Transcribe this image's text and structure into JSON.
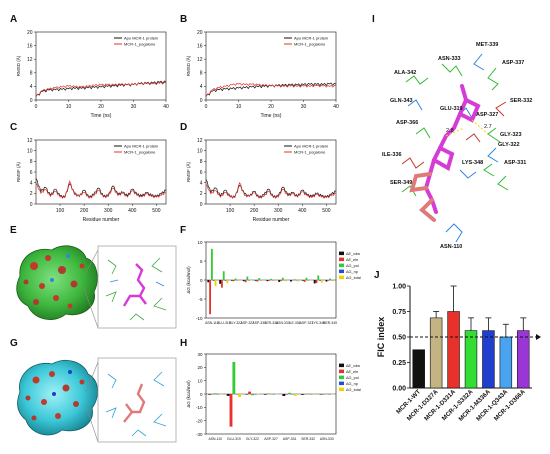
{
  "figure": {
    "panel_letters": [
      "A",
      "B",
      "C",
      "D",
      "E",
      "F",
      "G",
      "H",
      "I",
      "J"
    ]
  },
  "panels": {
    "A": {
      "ylabel": "RMSD (Å)",
      "xlabel": "Time (ns)",
      "legend": [
        "Apo MCR-1 protein",
        "MCR-1_pogalone"
      ]
    },
    "B": {
      "ylabel": "RMSD (Å)",
      "xlabel": "Time (ns)",
      "legend": [
        "Apo MCR-1 protein",
        "MCR-1_pogalone"
      ]
    },
    "C": {
      "ylabel": "RMSF (Å)",
      "xlabel": "Residue number",
      "legend": [
        "Apo MCR-1 protein",
        "MCR-1_pogalone"
      ]
    },
    "D": {
      "ylabel": "RMSF (Å)",
      "xlabel": "Residue number",
      "legend": [
        "Apo MCR-1 protein",
        "MCR-1_pogalone"
      ]
    },
    "F": {
      "ylabel": "ΔG (kcal/mol)",
      "legend": [
        "ΔE_vdw",
        "ΔE_ele",
        "ΔG_pol",
        "ΔG_np",
        "ΔG_total"
      ]
    },
    "H": {
      "ylabel": "ΔG (kcal/mol)",
      "legend": [
        "ΔE_vdw",
        "ΔE_ele",
        "ΔG_pol",
        "ΔG_np",
        "ΔG_total"
      ]
    },
    "I": {
      "residues": [
        "ALA-342",
        "ASN-333",
        "MET-339",
        "ASP-337",
        "SER-332",
        "GLN-343",
        "GLU-319",
        "ASP-327",
        "ASP-366",
        "GLY-323",
        "GLY-322",
        "ILE-336",
        "LYS-348",
        "ASP-331",
        "SER-349",
        "ASN-110"
      ],
      "distances": [
        "2.8",
        "2.7"
      ]
    }
  },
  "colors": {
    "apo": "#111111",
    "ligand": "#e8312a",
    "vdw": "#111111",
    "ele": "#e8312a",
    "pol": "#33cc33",
    "np": "#1f4fd6",
    "total": "#f2d200",
    "fic_bars": [
      "#111111",
      "#c4b383",
      "#e8312a",
      "#33dd33",
      "#1f3fcc",
      "#4aa3f0",
      "#9a35d6"
    ]
  },
  "chart_data": [
    {
      "panel": "A",
      "type": "line",
      "xlabel": "Time (ns)",
      "ylabel": "RMSD (Å)",
      "xlim": [
        0,
        40
      ],
      "ylim": [
        0,
        20
      ],
      "xticks": [
        0,
        10,
        20,
        30,
        40
      ],
      "yticks": [
        0,
        4,
        8,
        12,
        16,
        20
      ],
      "x": [
        0,
        2,
        4,
        6,
        8,
        10,
        12,
        14,
        16,
        18,
        20,
        22,
        24,
        26,
        28,
        30,
        32,
        34,
        36,
        38,
        40
      ],
      "series": [
        {
          "name": "Apo MCR-1 protein",
          "values": [
            1.0,
            2.5,
            2.9,
            3.0,
            3.1,
            3.3,
            3.4,
            3.4,
            3.6,
            3.7,
            3.8,
            4.0,
            4.1,
            4.3,
            4.4,
            4.5,
            4.8,
            4.9,
            5.0,
            5.2,
            5.3
          ]
        },
        {
          "name": "MCR-1_pogalone",
          "values": [
            1.0,
            2.8,
            3.2,
            3.6,
            3.8,
            4.1,
            3.9,
            3.8,
            4.0,
            4.3,
            4.4,
            4.5,
            4.4,
            4.6,
            4.5,
            4.6,
            4.7,
            4.8,
            4.7,
            4.9,
            5.0
          ]
        }
      ]
    },
    {
      "panel": "B",
      "type": "line",
      "xlabel": "Time (ns)",
      "ylabel": "RMSD (Å)",
      "xlim": [
        0,
        40
      ],
      "ylim": [
        0,
        20
      ],
      "xticks": [
        0,
        10,
        20,
        30,
        40
      ],
      "yticks": [
        0,
        4,
        8,
        12,
        16,
        20
      ],
      "x": [
        0,
        2,
        4,
        6,
        8,
        10,
        12,
        14,
        16,
        18,
        20,
        22,
        24,
        26,
        28,
        30,
        32,
        34,
        36,
        38,
        40
      ],
      "series": [
        {
          "name": "Apo MCR-1 protein",
          "values": [
            1.0,
            2.6,
            3.0,
            3.2,
            3.3,
            3.5,
            3.6,
            3.8,
            3.9,
            4.0,
            4.1,
            4.2,
            4.3,
            4.4,
            4.4,
            4.5,
            4.6,
            4.6,
            4.5,
            4.7,
            4.6
          ]
        },
        {
          "name": "MCR-1_pogalone",
          "values": [
            1.0,
            3.0,
            3.6,
            4.0,
            4.4,
            4.7,
            4.5,
            4.6,
            4.4,
            4.3,
            4.2,
            4.1,
            4.0,
            4.1,
            4.0,
            4.1,
            4.0,
            4.2,
            4.1,
            4.0,
            4.1
          ]
        }
      ]
    },
    {
      "panel": "C",
      "type": "line",
      "xlabel": "Residue number",
      "ylabel": "RMSF (Å)",
      "xlim": [
        0,
        540
      ],
      "ylim": [
        0,
        12
      ],
      "xticks": [
        100,
        200,
        300,
        400,
        500
      ],
      "yticks": [
        0,
        2,
        4,
        6,
        8,
        10,
        12
      ],
      "x": [
        0,
        20,
        40,
        60,
        80,
        100,
        120,
        140,
        160,
        180,
        200,
        220,
        240,
        260,
        280,
        300,
        320,
        340,
        360,
        380,
        400,
        420,
        440,
        460,
        480,
        500,
        520,
        540
      ],
      "series": [
        {
          "name": "Apo MCR-1 protein",
          "values": [
            4.8,
            2.4,
            3.1,
            1.6,
            2.8,
            1.5,
            1.3,
            3.8,
            2.0,
            1.4,
            2.6,
            1.2,
            1.8,
            3.0,
            1.4,
            1.6,
            3.4,
            1.8,
            2.2,
            1.5,
            2.8,
            1.8,
            1.5,
            2.1,
            1.6,
            1.4,
            1.9,
            2.6
          ]
        },
        {
          "name": "MCR-1_pogalone",
          "values": [
            3.9,
            2.0,
            2.7,
            1.4,
            2.4,
            1.3,
            1.2,
            4.3,
            1.7,
            1.5,
            2.2,
            1.1,
            1.5,
            2.6,
            1.3,
            1.4,
            3.0,
            1.6,
            2.0,
            1.3,
            2.5,
            1.6,
            1.3,
            1.9,
            1.4,
            1.3,
            1.6,
            2.2
          ]
        }
      ]
    },
    {
      "panel": "D",
      "type": "line",
      "xlabel": "Residue number",
      "ylabel": "RMSF (Å)",
      "xlim": [
        0,
        540
      ],
      "ylim": [
        0,
        12
      ],
      "xticks": [
        100,
        200,
        300,
        400,
        500
      ],
      "yticks": [
        0,
        2,
        4,
        6,
        8,
        10,
        12
      ],
      "x": [
        0,
        20,
        40,
        60,
        80,
        100,
        120,
        140,
        160,
        180,
        200,
        220,
        240,
        260,
        280,
        300,
        320,
        340,
        360,
        380,
        400,
        420,
        440,
        460,
        480,
        500,
        520,
        540
      ],
      "series": [
        {
          "name": "Apo MCR-1 protein",
          "values": [
            4.6,
            2.2,
            3.0,
            1.5,
            2.6,
            1.4,
            1.3,
            3.5,
            1.9,
            1.4,
            2.4,
            1.2,
            1.7,
            2.8,
            1.3,
            1.5,
            3.2,
            1.7,
            2.1,
            1.4,
            2.6,
            1.7,
            1.4,
            2.0,
            1.5,
            1.3,
            1.8,
            2.4
          ]
        },
        {
          "name": "MCR-1_pogalone",
          "values": [
            3.7,
            1.9,
            2.5,
            1.3,
            2.2,
            1.3,
            1.2,
            4.0,
            1.6,
            1.4,
            2.1,
            1.1,
            1.4,
            2.4,
            1.2,
            1.3,
            2.8,
            1.5,
            1.9,
            1.3,
            2.3,
            1.5,
            1.2,
            1.8,
            1.3,
            1.2,
            1.5,
            2.0
          ]
        }
      ]
    },
    {
      "panel": "F",
      "type": "bar",
      "ylabel": "ΔG (kcal/mol)",
      "categories": [
        "ASN-110",
        "GLU-319",
        "GLY-322",
        "ASP-327",
        "ASP-331",
        "SER-332",
        "ASN-333",
        "ILE-336",
        "ASP-337",
        "LYS-348",
        "SER-349"
      ],
      "ylim": [
        -10,
        10
      ],
      "yticks": [
        -10,
        -5,
        0,
        5,
        10
      ],
      "series": [
        {
          "name": "ΔE_vdw",
          "values": [
            -0.6,
            -1.0,
            -0.2,
            -0.3,
            -0.2,
            -0.3,
            -0.5,
            -0.4,
            -0.2,
            -0.9,
            -0.4
          ]
        },
        {
          "name": "ΔE_ele",
          "values": [
            -9.0,
            -2.0,
            -0.3,
            -0.6,
            -0.4,
            -0.2,
            -0.3,
            -0.1,
            -0.5,
            -0.8,
            -0.2
          ]
        },
        {
          "name": "ΔG_pol",
          "values": [
            8.2,
            2.3,
            0.4,
            0.9,
            0.5,
            0.3,
            0.6,
            0.2,
            0.6,
            1.2,
            0.4
          ]
        },
        {
          "name": "ΔG_np",
          "values": [
            -0.2,
            -0.2,
            -0.1,
            -0.1,
            -0.1,
            -0.1,
            -0.1,
            -0.1,
            -0.1,
            -0.2,
            -0.1
          ]
        },
        {
          "name": "ΔG_total",
          "values": [
            -1.6,
            -0.9,
            -0.2,
            -0.1,
            -0.2,
            -0.3,
            -0.3,
            -0.4,
            -0.2,
            -0.7,
            -0.3
          ]
        }
      ]
    },
    {
      "panel": "H",
      "type": "bar",
      "ylabel": "ΔG (kcal/mol)",
      "categories": [
        "ASN-110",
        "GLU-319",
        "GLY-322",
        "ASP-327",
        "ASP-331",
        "SER-332",
        "ASN-333"
      ],
      "ylim": [
        -30,
        30
      ],
      "yticks": [
        -30,
        -20,
        -10,
        0,
        10,
        20,
        30
      ],
      "series": [
        {
          "name": "ΔE_vdw",
          "values": [
            -0.5,
            -1.4,
            -0.4,
            -0.5,
            -1.5,
            -0.6,
            -0.4
          ]
        },
        {
          "name": "ΔE_ele",
          "values": [
            -0.4,
            -24.5,
            1.8,
            0.3,
            -0.5,
            -0.3,
            -0.2
          ]
        },
        {
          "name": "ΔG_pol",
          "values": [
            0.6,
            24.0,
            -0.9,
            0.2,
            0.9,
            0.4,
            0.3
          ]
        },
        {
          "name": "ΔG_np",
          "values": [
            -0.1,
            -0.3,
            -0.1,
            -0.1,
            -0.2,
            -0.1,
            -0.1
          ]
        },
        {
          "name": "ΔG_total",
          "values": [
            -0.4,
            -2.2,
            0.4,
            -0.1,
            -1.3,
            -0.6,
            -0.4
          ]
        }
      ]
    },
    {
      "panel": "J",
      "type": "bar",
      "ylabel": "FIC index",
      "categories": [
        "MCR-1-WT",
        "MCR-1-D327A",
        "MCR-1-D331A",
        "MCR-1-S332A",
        "MCR-1-M336A",
        "MCR-1-Q343A",
        "MCR-1-D366A"
      ],
      "values": [
        0.375,
        0.6875,
        0.75,
        0.5625,
        0.5625,
        0.5,
        0.5625
      ],
      "errors": [
        0.0,
        0.0625,
        0.25,
        0.125,
        0.125,
        0.125,
        0.125
      ],
      "ylim": [
        0,
        1.0
      ],
      "yticks": [
        0.0,
        0.25,
        0.5,
        0.75,
        1.0
      ],
      "ytick_labels": [
        "0.00",
        "0.25",
        "0.50",
        "0.75",
        "1.00"
      ],
      "reference_line": 0.5
    }
  ]
}
